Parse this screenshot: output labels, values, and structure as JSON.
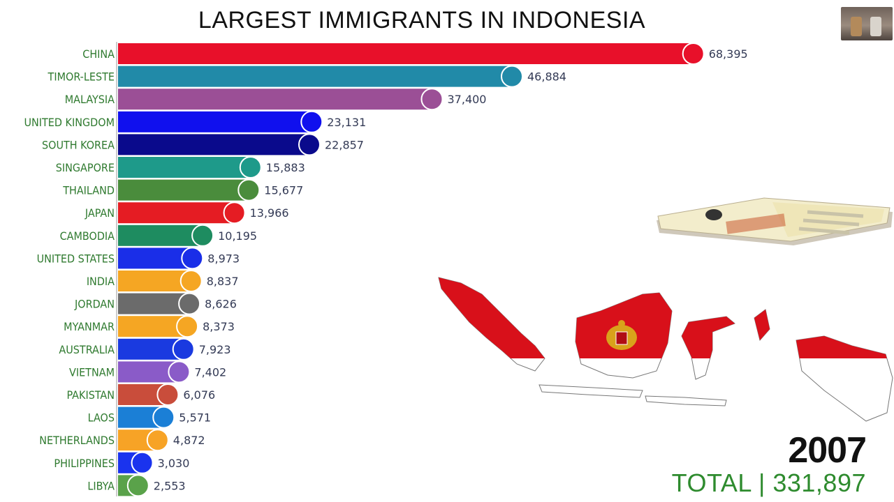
{
  "title": "LARGEST IMMIGRANTS IN INDONESIA",
  "year": "2007",
  "total_text": "TOTAL | 331,897",
  "chart_data": {
    "type": "bar",
    "orientation": "horizontal",
    "title": "LARGEST IMMIGRANTS IN INDONESIA",
    "xlim": [
      0,
      82000
    ],
    "categories": [
      "CHINA",
      "TIMOR-LESTE",
      "MALAYSIA",
      "UNITED KINGDOM",
      "SOUTH KOREA",
      "SINGAPORE",
      "THAILAND",
      "JAPAN",
      "CAMBODIA",
      "UNITED STATES",
      "INDIA",
      "JORDAN",
      "MYANMAR",
      "AUSTRALIA",
      "VIETNAM",
      "PAKISTAN",
      "LAOS",
      "NETHERLANDS",
      "PHILIPPINES",
      "LIBYA"
    ],
    "values": [
      68395,
      46884,
      37400,
      23131,
      22857,
      15883,
      15677,
      13966,
      10195,
      8973,
      8837,
      8626,
      8373,
      7923,
      7402,
      6076,
      5571,
      4872,
      3030,
      2553
    ],
    "value_labels": [
      "68,395",
      "46,884",
      "37,400",
      "23,131",
      "22,857",
      "15,883",
      "15,677",
      "13,966",
      "10,195",
      "8,973",
      "8,837",
      "8,626",
      "8,373",
      "7,923",
      "7,402",
      "6,076",
      "5,571",
      "4,872",
      "3,030",
      "2,553"
    ],
    "colors": [
      "#e8102a",
      "#218aa8",
      "#9b4f96",
      "#1010ee",
      "#0a0a8c",
      "#1e9a8a",
      "#4a8c3c",
      "#e51c23",
      "#1e8c60",
      "#1a2ee8",
      "#f5a623",
      "#6b6b6b",
      "#f5a623",
      "#1a3ae0",
      "#8a5bc8",
      "#c94d3b",
      "#1b7fd6",
      "#f7a326",
      "#1a33ee",
      "#5aa24a"
    ]
  },
  "colors": {
    "label_green": "#2f7a2f",
    "value_text": "#333a55",
    "map_red": "#d8101a",
    "total_green": "#2e8b2e"
  },
  "icons": [
    "country-flag-icon",
    "passport-icon",
    "garuda-emblem-icon"
  ]
}
